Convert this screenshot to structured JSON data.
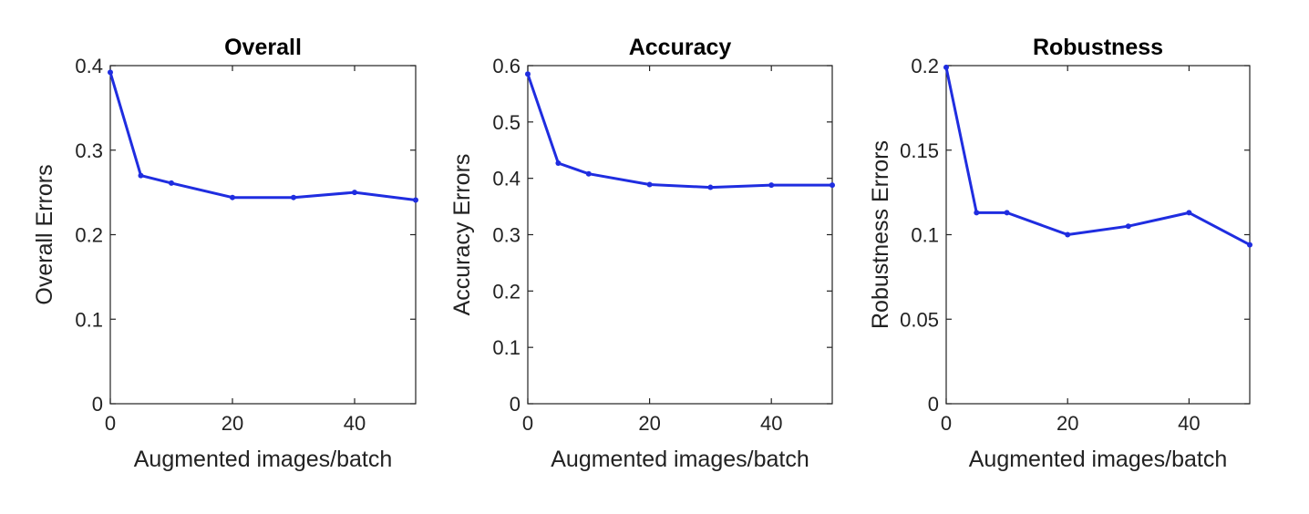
{
  "colors": {
    "series": "#1f2de0",
    "axis": "#222222"
  },
  "chart_data": [
    {
      "type": "line",
      "title": "Overall",
      "xlabel": "Augmented images/batch",
      "ylabel": "Overall Errors",
      "xlim": [
        0,
        50
      ],
      "ylim": [
        0,
        0.4
      ],
      "xticks": [
        0,
        20,
        40
      ],
      "xtick_labels": [
        "0",
        "20",
        "40"
      ],
      "yticks": [
        0,
        0.1,
        0.2,
        0.3,
        0.4
      ],
      "ytick_labels": [
        "0",
        "0.1",
        "0.2",
        "0.3",
        "0.4"
      ],
      "grid": false,
      "series": [
        {
          "x": [
            0,
            5,
            10,
            20,
            30,
            40,
            50
          ],
          "y": [
            0.392,
            0.27,
            0.261,
            0.244,
            0.244,
            0.25,
            0.241
          ]
        }
      ]
    },
    {
      "type": "line",
      "title": "Accuracy",
      "xlabel": "Augmented images/batch",
      "ylabel": "Accuracy Errors",
      "xlim": [
        0,
        50
      ],
      "ylim": [
        0,
        0.6
      ],
      "xticks": [
        0,
        20,
        40
      ],
      "xtick_labels": [
        "0",
        "20",
        "40"
      ],
      "yticks": [
        0,
        0.1,
        0.2,
        0.3,
        0.4,
        0.5,
        0.6
      ],
      "ytick_labels": [
        "0",
        "0.1",
        "0.2",
        "0.3",
        "0.4",
        "0.5",
        "0.6"
      ],
      "grid": false,
      "series": [
        {
          "x": [
            0,
            5,
            10,
            20,
            30,
            40,
            50
          ],
          "y": [
            0.585,
            0.427,
            0.408,
            0.389,
            0.384,
            0.388,
            0.388
          ]
        }
      ]
    },
    {
      "type": "line",
      "title": "Robustness",
      "xlabel": "Augmented images/batch",
      "ylabel": "Robustness Errors",
      "xlim": [
        0,
        50
      ],
      "ylim": [
        0,
        0.2
      ],
      "xticks": [
        0,
        20,
        40
      ],
      "xtick_labels": [
        "0",
        "20",
        "40"
      ],
      "yticks": [
        0,
        0.05,
        0.1,
        0.15,
        0.2
      ],
      "ytick_labels": [
        "0",
        "0.05",
        "0.1",
        "0.15",
        "0.2"
      ],
      "grid": false,
      "series": [
        {
          "x": [
            0,
            5,
            10,
            20,
            30,
            40,
            50
          ],
          "y": [
            0.199,
            0.113,
            0.113,
            0.1,
            0.105,
            0.113,
            0.094
          ]
        }
      ]
    }
  ]
}
